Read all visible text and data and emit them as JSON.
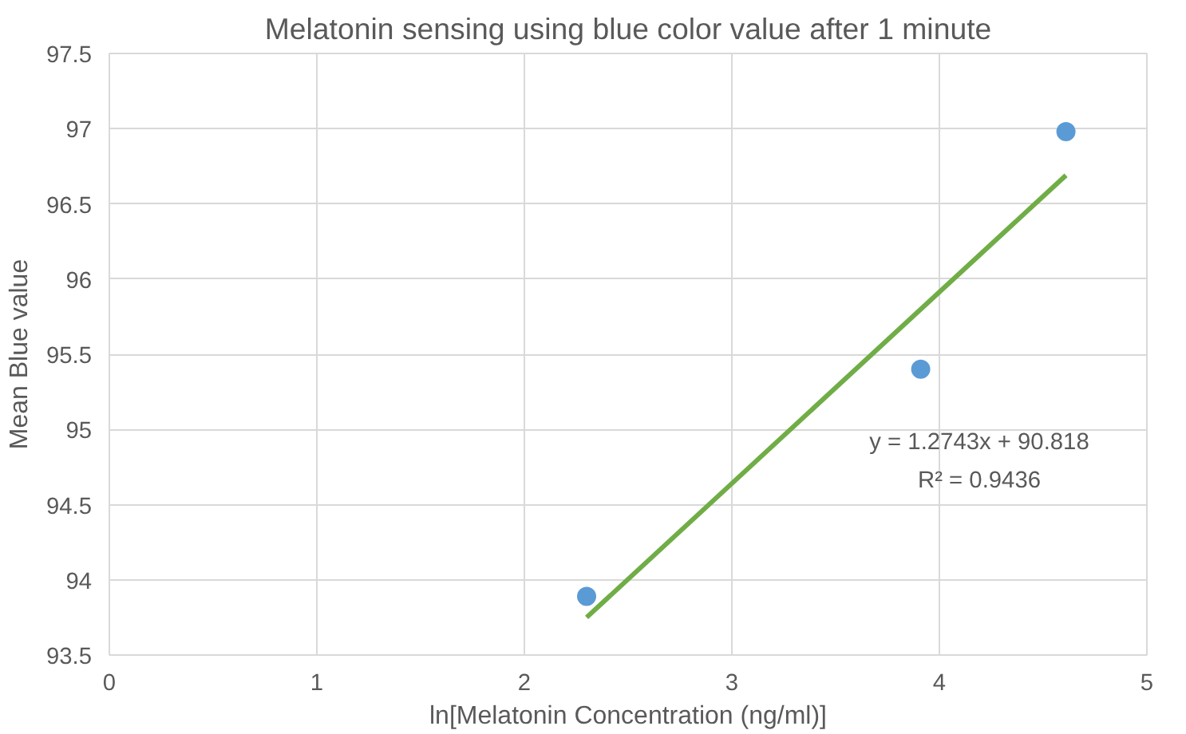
{
  "chart_data": {
    "type": "scatter",
    "title": "Melatonin sensing using blue color value after 1 minute",
    "xlabel": "ln[Melatonin Concentration (ng/ml)]",
    "ylabel": "Mean Blue value",
    "series": [
      {
        "color": "#5b9bd5",
        "marker": "circle",
        "x": [
          2.3,
          3.91,
          4.61
        ],
        "values": [
          93.89,
          95.4,
          96.98
        ]
      },
      {
        "type": "line",
        "color": "#70ad47",
        "x": [
          2.3,
          4.61
        ],
        "values": [
          93.75,
          96.69
        ]
      }
    ],
    "annotations": [
      "y = 1.2743x + 90.818",
      "R² = 0.9436"
    ],
    "xlim": [
      0,
      5
    ],
    "xticks": [
      0,
      1,
      2,
      3,
      4,
      5
    ],
    "ylim": [
      93.5,
      97.5
    ],
    "yticks": [
      93.5,
      94,
      94.5,
      95,
      95.5,
      96,
      96.5,
      97,
      97.5
    ],
    "grid": true
  }
}
